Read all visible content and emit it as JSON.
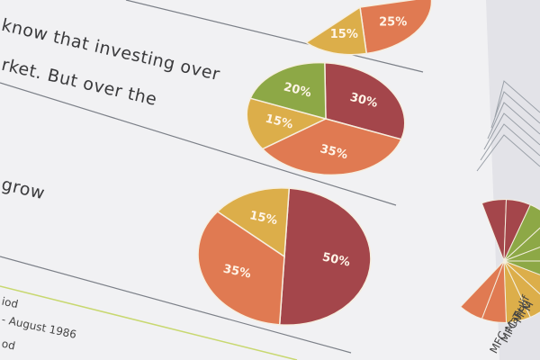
{
  "text_lines": [
    "know that investing over",
    "rket. But over the",
    "grow",
    "iod",
    "- August 1986",
    "od"
  ],
  "side_labels": [
    "M",
    "MFC",
    "Manulif",
    "MFC T",
    "MFC"
  ],
  "chart_data": [
    {
      "type": "pie",
      "values": [
        25,
        15
      ],
      "value_labels": [
        "25%",
        "15%"
      ],
      "colors": [
        "#e07a52",
        "#dcae4a"
      ]
    },
    {
      "type": "pie",
      "values": [
        30,
        35,
        15,
        20
      ],
      "value_labels": [
        "30%",
        "35%",
        "15%",
        "20%"
      ],
      "colors": [
        "#a4464b",
        "#e07a52",
        "#dcae4a",
        "#8da846"
      ]
    },
    {
      "type": "pie",
      "values": [
        50,
        35,
        15
      ],
      "value_labels": [
        "50%",
        "35%",
        "15%"
      ],
      "colors": [
        "#a4464b",
        "#e07a52",
        "#dcae4a"
      ]
    }
  ]
}
